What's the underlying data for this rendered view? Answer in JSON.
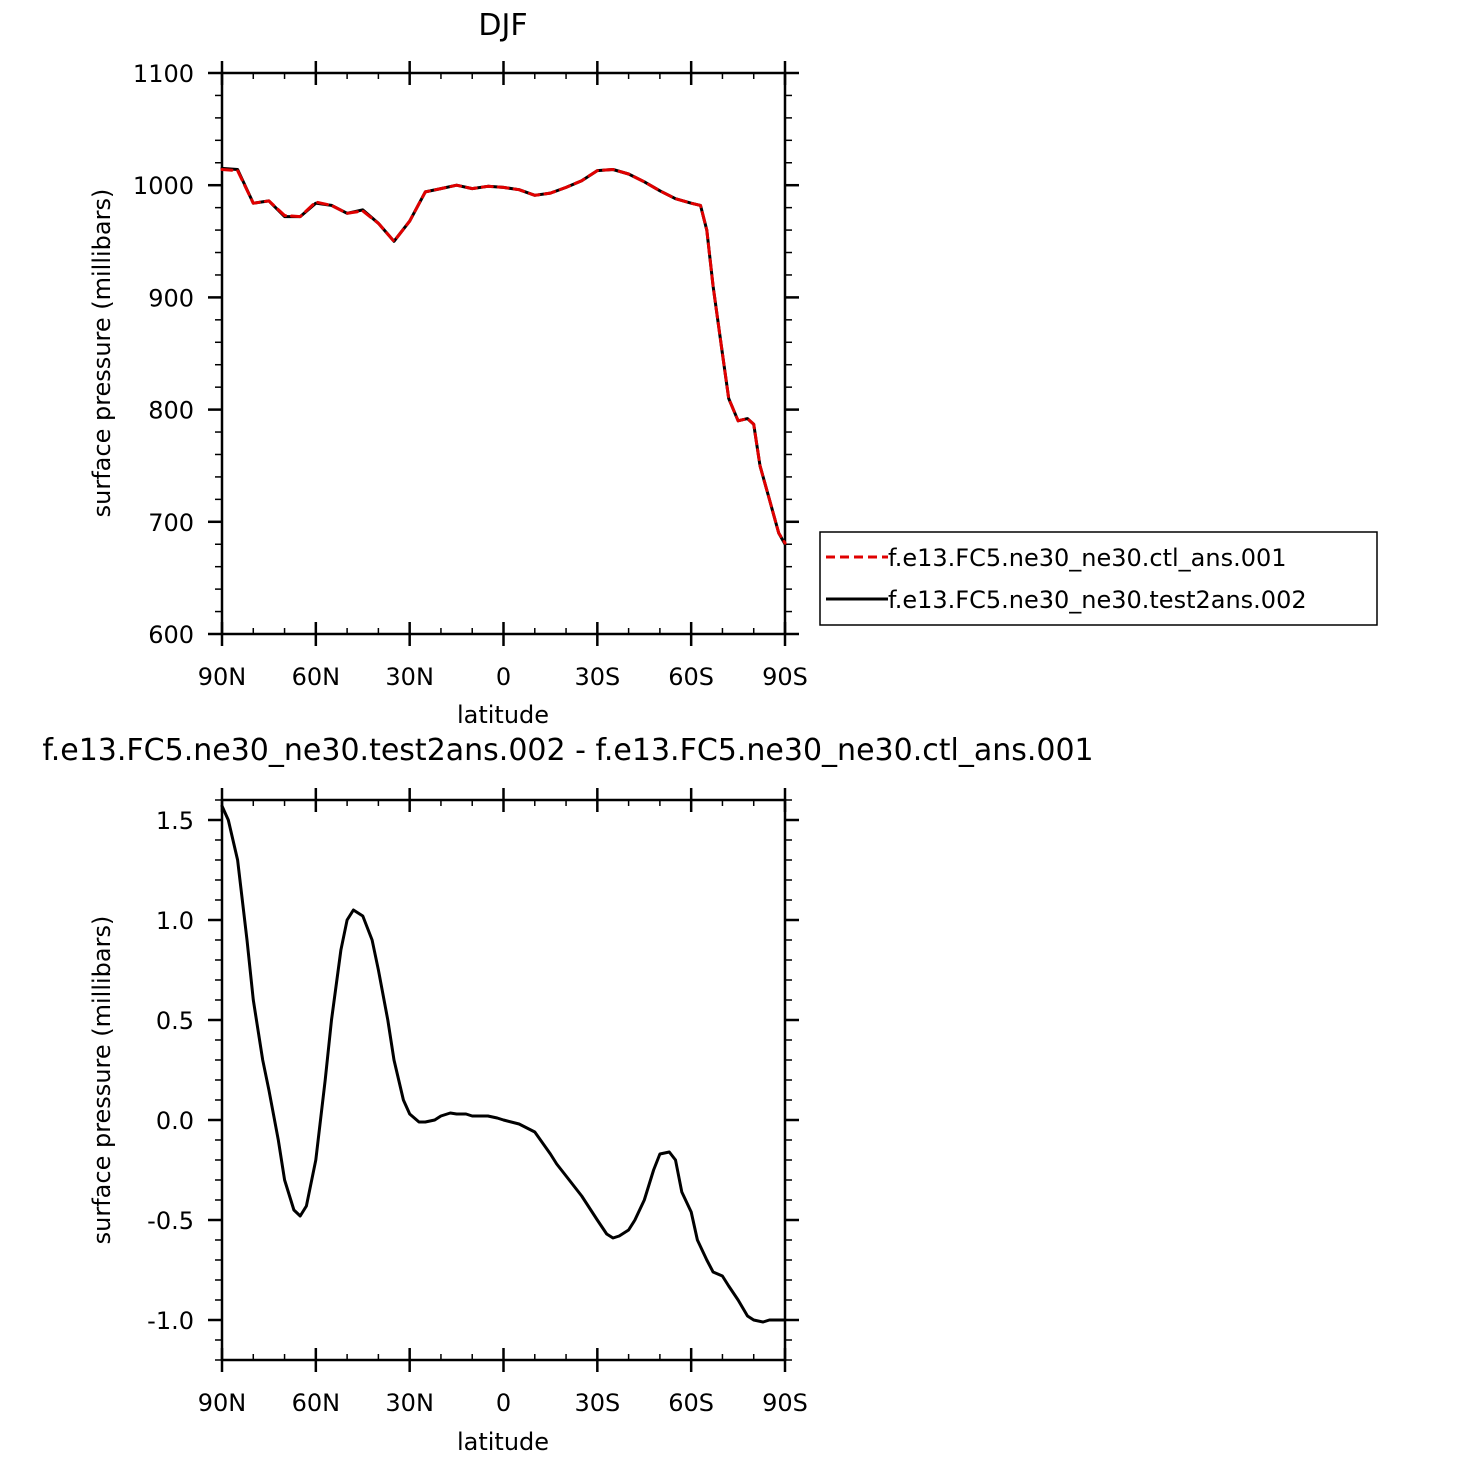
{
  "chart_data": [
    {
      "type": "line",
      "title": "DJF",
      "xlabel": "latitude",
      "ylabel": "surface pressure (millibars)",
      "xlim": [
        90,
        -90
      ],
      "ylim": [
        600,
        1100
      ],
      "xtick_labels": [
        "90N",
        "60N",
        "30N",
        "0",
        "30S",
        "60S",
        "90S"
      ],
      "ytick_labels": [
        "600",
        "700",
        "800",
        "900",
        "1000",
        "1100"
      ],
      "legend_position": "right",
      "series": [
        {
          "name": "f.e13.FC5.ne30_ne30.ctl_ans.001",
          "color": "#e00000",
          "style": "dashed",
          "x": [
            90,
            85,
            80,
            75,
            70,
            65,
            60,
            55,
            50,
            45,
            40,
            35,
            30,
            25,
            20,
            15,
            10,
            5,
            0,
            -5,
            -10,
            -15,
            -20,
            -25,
            -30,
            -35,
            -40,
            -45,
            -50,
            -55,
            -60,
            -63,
            -65,
            -67,
            -70,
            -72,
            -75,
            -78,
            -80,
            -82,
            -85,
            -88,
            -90
          ],
          "y": [
            1014,
            1013,
            984,
            986,
            973,
            972,
            985,
            982,
            975,
            977,
            966,
            950,
            968,
            994,
            997,
            1000,
            997,
            999,
            998,
            996,
            991,
            993,
            998,
            1004,
            1013,
            1014,
            1010,
            1003,
            995,
            988,
            984,
            982,
            960,
            910,
            850,
            810,
            790,
            792,
            787,
            750,
            720,
            690,
            681
          ]
        },
        {
          "name": "f.e13.FC5.ne30_ne30.test2ans.002",
          "color": "#000000",
          "style": "solid",
          "x": [
            90,
            85,
            80,
            75,
            70,
            65,
            60,
            55,
            50,
            45,
            40,
            35,
            30,
            25,
            20,
            15,
            10,
            5,
            0,
            -5,
            -10,
            -15,
            -20,
            -25,
            -30,
            -35,
            -40,
            -45,
            -50,
            -55,
            -60,
            -63,
            -65,
            -67,
            -70,
            -72,
            -75,
            -78,
            -80,
            -82,
            -85,
            -88,
            -90
          ],
          "y": [
            1015,
            1014,
            984,
            986,
            972,
            972,
            984,
            982,
            975,
            978,
            966,
            950,
            968,
            994,
            997,
            1000,
            997,
            999,
            998,
            996,
            991,
            993,
            998,
            1004,
            1013,
            1014,
            1010,
            1003,
            995,
            988,
            984,
            982,
            960,
            910,
            850,
            810,
            790,
            792,
            787,
            750,
            720,
            690,
            680
          ]
        }
      ]
    },
    {
      "type": "line",
      "title": "f.e13.FC5.ne30_ne30.test2ans.002 - f.e13.FC5.ne30_ne30.ctl_ans.001",
      "xlabel": "latitude",
      "ylabel": "surface pressure (millibars)",
      "xlim": [
        90,
        -90
      ],
      "ylim": [
        -1.2,
        1.6
      ],
      "xtick_labels": [
        "90N",
        "60N",
        "30N",
        "0",
        "30S",
        "60S",
        "90S"
      ],
      "ytick_labels": [
        "-1.0",
        "-0.5",
        "0.0",
        "0.5",
        "1.0",
        "1.5"
      ],
      "series": [
        {
          "color": "#000000",
          "style": "solid",
          "x": [
            90,
            88,
            85,
            82,
            80,
            77,
            75,
            72,
            70,
            67,
            65,
            63,
            60,
            57,
            55,
            52,
            50,
            48,
            45,
            42,
            40,
            37,
            35,
            32,
            30,
            27,
            25,
            22,
            20,
            17,
            15,
            12,
            10,
            7,
            5,
            2,
            0,
            -5,
            -10,
            -15,
            -17,
            -20,
            -25,
            -30,
            -33,
            -35,
            -37,
            -40,
            -42,
            -45,
            -48,
            -50,
            -53,
            -55,
            -57,
            -60,
            -62,
            -65,
            -67,
            -70,
            -72,
            -75,
            -78,
            -80,
            -83,
            -85,
            -88,
            -90
          ],
          "y": [
            1.57,
            1.5,
            1.3,
            0.9,
            0.6,
            0.3,
            0.15,
            -0.1,
            -0.3,
            -0.45,
            -0.48,
            -0.43,
            -0.2,
            0.2,
            0.5,
            0.85,
            1.0,
            1.05,
            1.02,
            0.9,
            0.75,
            0.5,
            0.3,
            0.1,
            0.03,
            -0.01,
            -0.01,
            0.0,
            0.02,
            0.035,
            0.03,
            0.03,
            0.02,
            0.02,
            0.02,
            0.01,
            0.0,
            -0.02,
            -0.06,
            -0.17,
            -0.22,
            -0.28,
            -0.38,
            -0.5,
            -0.57,
            -0.59,
            -0.58,
            -0.55,
            -0.5,
            -0.4,
            -0.25,
            -0.17,
            -0.16,
            -0.2,
            -0.36,
            -0.46,
            -0.6,
            -0.7,
            -0.76,
            -0.78,
            -0.83,
            -0.9,
            -0.98,
            -1.0,
            -1.01,
            -1.0,
            -1.0,
            -1.0
          ]
        }
      ]
    }
  ]
}
